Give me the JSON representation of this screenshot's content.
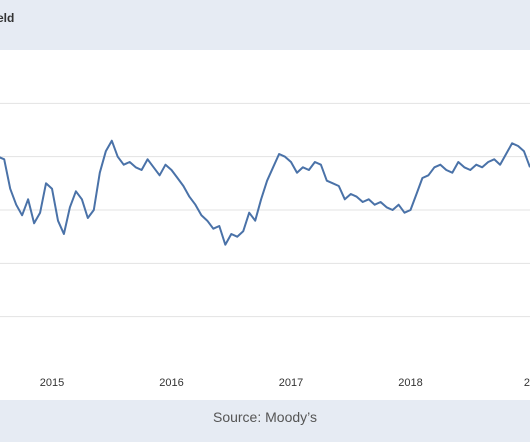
{
  "header": {
    "title": "eld"
  },
  "footer": {
    "source": "Source: Moody’s"
  },
  "chart_data": {
    "type": "line",
    "title": "eld",
    "x_ticks": [
      "2015",
      "2016",
      "2017",
      "2018",
      "20"
    ],
    "x_range": [
      2014.4,
      2019.0
    ],
    "y_range": [
      0,
      6
    ],
    "y_gridlines": [
      1,
      2,
      3,
      4,
      5
    ],
    "grid": true,
    "legend": "none",
    "line_color": "#4a72a8",
    "series": [
      {
        "name": "",
        "x": [
          2014.4,
          2014.45,
          2014.5,
          2014.55,
          2014.6,
          2014.65,
          2014.7,
          2014.75,
          2014.8,
          2014.85,
          2014.9,
          2014.95,
          2015.0,
          2015.05,
          2015.1,
          2015.15,
          2015.2,
          2015.25,
          2015.3,
          2015.35,
          2015.4,
          2015.45,
          2015.5,
          2015.55,
          2015.6,
          2015.65,
          2015.7,
          2015.75,
          2015.8,
          2015.85,
          2015.9,
          2015.95,
          2016.0,
          2016.05,
          2016.1,
          2016.15,
          2016.2,
          2016.25,
          2016.3,
          2016.35,
          2016.4,
          2016.45,
          2016.5,
          2016.55,
          2016.6,
          2016.65,
          2016.7,
          2016.75,
          2016.8,
          2016.85,
          2016.9,
          2016.95,
          2017.0,
          2017.05,
          2017.1,
          2017.15,
          2017.2,
          2017.25,
          2017.3,
          2017.35,
          2017.4,
          2017.45,
          2017.5,
          2017.55,
          2017.6,
          2017.65,
          2017.7,
          2017.75,
          2017.8,
          2017.85,
          2017.9,
          2017.95,
          2018.0,
          2018.05,
          2018.1,
          2018.15,
          2018.2,
          2018.25,
          2018.3,
          2018.35,
          2018.4,
          2018.45,
          2018.5,
          2018.55,
          2018.6,
          2018.65,
          2018.7,
          2018.75,
          2018.8,
          2018.85,
          2018.9,
          2018.95,
          2019.0
        ],
        "y": [
          4.15,
          4.35,
          3.9,
          4.0,
          3.95,
          3.4,
          3.1,
          2.9,
          3.2,
          2.75,
          2.95,
          3.5,
          3.4,
          2.8,
          2.55,
          3.05,
          3.35,
          3.2,
          2.85,
          3.0,
          3.7,
          4.1,
          4.3,
          4.0,
          3.85,
          3.9,
          3.8,
          3.75,
          3.95,
          3.8,
          3.65,
          3.85,
          3.75,
          3.6,
          3.45,
          3.25,
          3.1,
          2.9,
          2.8,
          2.65,
          2.7,
          2.35,
          2.55,
          2.5,
          2.6,
          2.95,
          2.8,
          3.2,
          3.55,
          3.8,
          4.05,
          4.0,
          3.9,
          3.7,
          3.8,
          3.75,
          3.9,
          3.85,
          3.55,
          3.5,
          3.45,
          3.2,
          3.3,
          3.25,
          3.15,
          3.2,
          3.1,
          3.15,
          3.05,
          3.0,
          3.1,
          2.95,
          3.0,
          3.3,
          3.6,
          3.65,
          3.8,
          3.85,
          3.75,
          3.7,
          3.9,
          3.8,
          3.75,
          3.85,
          3.8,
          3.9,
          3.95,
          3.85,
          4.05,
          4.25,
          4.2,
          4.1,
          3.8
        ]
      }
    ]
  }
}
